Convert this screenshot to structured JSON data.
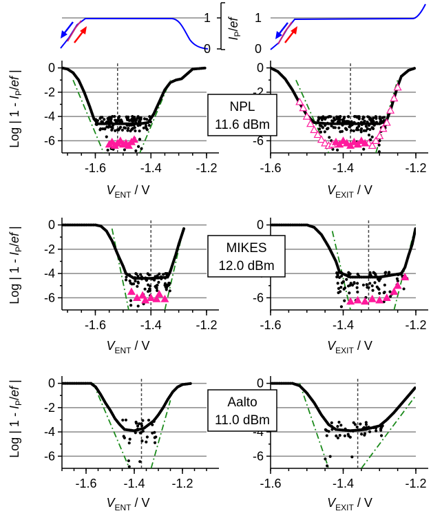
{
  "chart_data": {
    "type": "scatter",
    "y_axis_title": "Log | 1 - I_P/ef |",
    "top_panel": {
      "y_axis_title": "I_P/ef",
      "yticks": [
        "0",
        "1"
      ],
      "ylim": [
        0,
        1
      ]
    },
    "rows": [
      {
        "label": "NPL",
        "power": "11.6 dBm",
        "ylim": [
          -7,
          0
        ],
        "yticks": [
          "0",
          "-2",
          "-4",
          "-6"
        ],
        "left": {
          "xlabel": "V_ENT / V",
          "xlim": [
            -1.72,
            -1.2
          ],
          "xticks": [
            "-1.6",
            "-1.4",
            "-1.2"
          ],
          "xtick_values": [
            -1.6,
            -1.4,
            -1.2
          ],
          "dashed_x": -1.52,
          "curve": [
            [
              -1.72,
              0
            ],
            [
              -1.7,
              -0.1
            ],
            [
              -1.68,
              -0.4
            ],
            [
              -1.66,
              -1
            ],
            [
              -1.64,
              -2
            ],
            [
              -1.62,
              -3.2
            ],
            [
              -1.605,
              -4.2
            ],
            [
              -1.59,
              -4.6
            ],
            [
              -1.56,
              -4.6
            ],
            [
              -1.5,
              -4.6
            ],
            [
              -1.44,
              -4.6
            ],
            [
              -1.41,
              -4.5
            ],
            [
              -1.39,
              -3.8
            ],
            [
              -1.37,
              -2.8
            ],
            [
              -1.35,
              -1.8
            ],
            [
              -1.33,
              -1.2
            ],
            [
              -1.31,
              -1
            ],
            [
              -1.29,
              -0.9
            ],
            [
              -1.27,
              -0.5
            ],
            [
              -1.25,
              -0.1
            ],
            [
              -1.2,
              0
            ]
          ],
          "noise_x": [
            -1.6,
            -1.4
          ],
          "noise_y": [
            -4.0,
            -5.2
          ],
          "noise_count": 120,
          "triangles_filled": [
            [
              -1.55,
              -6.3
            ],
            [
              -1.54,
              -6.1
            ],
            [
              -1.53,
              -6.4
            ],
            [
              -1.52,
              -6.2
            ],
            [
              -1.51,
              -6.0
            ],
            [
              -1.5,
              -6.3
            ],
            [
              -1.49,
              -6.2
            ],
            [
              -1.48,
              -6.4
            ],
            [
              -1.47,
              -6.1
            ],
            [
              -1.46,
              -5.9
            ]
          ],
          "fit_lines": [
            [
              [
                -1.68,
                -1
              ],
              [
                -1.57,
                -7
              ]
            ],
            [
              [
                -1.44,
                -7
              ],
              [
                -1.33,
                -1
              ]
            ]
          ]
        },
        "right": {
          "xlabel": "V_EXIT / V",
          "xlim": [
            -1.6,
            -1.2
          ],
          "xticks": [
            "-1.6",
            "-1.4",
            "-1.2"
          ],
          "xtick_values": [
            -1.6,
            -1.4,
            -1.2
          ],
          "dashed_x": -1.38,
          "curve": [
            [
              -1.6,
              0
            ],
            [
              -1.58,
              -0.3
            ],
            [
              -1.56,
              -0.9
            ],
            [
              -1.54,
              -1.8
            ],
            [
              -1.52,
              -2.9
            ],
            [
              -1.5,
              -3.9
            ],
            [
              -1.48,
              -4.5
            ],
            [
              -1.44,
              -4.6
            ],
            [
              -1.36,
              -4.6
            ],
            [
              -1.3,
              -4.6
            ],
            [
              -1.28,
              -4.3
            ],
            [
              -1.27,
              -3.5
            ],
            [
              -1.26,
              -2.5
            ],
            [
              -1.25,
              -1.5
            ],
            [
              -1.24,
              -0.7
            ],
            [
              -1.22,
              -0.2
            ],
            [
              -1.2,
              0
            ]
          ],
          "noise_x": [
            -1.47,
            -1.28
          ],
          "noise_y": [
            -4.0,
            -5.3
          ],
          "noise_count": 140,
          "triangles_filled": [
            [
              -1.42,
              -6.1
            ],
            [
              -1.41,
              -6.3
            ],
            [
              -1.4,
              -6.0
            ],
            [
              -1.39,
              -6.2
            ],
            [
              -1.38,
              -6.4
            ],
            [
              -1.37,
              -6.1
            ],
            [
              -1.36,
              -6.3
            ],
            [
              -1.35,
              -6.0
            ],
            [
              -1.34,
              -6.2
            ]
          ],
          "triangles_open": [
            [
              -1.5,
              -4.0
            ],
            [
              -1.49,
              -4.6
            ],
            [
              -1.48,
              -5.1
            ],
            [
              -1.47,
              -5.5
            ],
            [
              -1.46,
              -5.9
            ],
            [
              -1.45,
              -6.2
            ],
            [
              -1.44,
              -6.4
            ],
            [
              -1.43,
              -6.3
            ],
            [
              -1.33,
              -6.2
            ],
            [
              -1.32,
              -6.4
            ],
            [
              -1.31,
              -6.0
            ],
            [
              -1.3,
              -5.6
            ],
            [
              -1.29,
              -5.0
            ],
            [
              -1.28,
              -4.5
            ],
            [
              -1.27,
              -3.5
            ],
            [
              -1.26,
              -2.5
            ],
            [
              -1.25,
              -1.6
            ],
            [
              -1.52,
              -2.8
            ],
            [
              -1.51,
              -3.3
            ]
          ],
          "fit_lines": [
            [
              [
                -1.53,
                -1
              ],
              [
                -1.44,
                -7
              ]
            ],
            [
              [
                -1.31,
                -7
              ],
              [
                -1.25,
                -1
              ]
            ]
          ]
        }
      },
      {
        "label": "MIKES",
        "power": "12.0 dBm",
        "ylim": [
          -7,
          1
        ],
        "yticks": [
          "0",
          "-2",
          "-4",
          "-6"
        ],
        "left": {
          "xlabel": "V_ENT / V",
          "xlim": [
            -1.72,
            -1.2
          ],
          "xticks": [
            "-1.6",
            "-1.4",
            "-1.2"
          ],
          "xtick_values": [
            -1.6,
            -1.4,
            -1.2
          ],
          "dashed_x": -1.4,
          "curve": [
            [
              -1.72,
              0
            ],
            [
              -1.6,
              0
            ],
            [
              -1.58,
              -0.1
            ],
            [
              -1.56,
              -0.5
            ],
            [
              -1.54,
              -1.3
            ],
            [
              -1.52,
              -2.4
            ],
            [
              -1.5,
              -3.4
            ],
            [
              -1.49,
              -4.0
            ],
            [
              -1.46,
              -4.4
            ],
            [
              -1.4,
              -4.4
            ],
            [
              -1.34,
              -4.3
            ],
            [
              -1.33,
              -3.8
            ],
            [
              -1.32,
              -3.1
            ],
            [
              -1.31,
              -2.4
            ],
            [
              -1.3,
              -1.6
            ],
            [
              -1.29,
              -0.9
            ],
            [
              -1.28,
              -0.2
            ]
          ],
          "noise_x": [
            -1.49,
            -1.33
          ],
          "noise_y": [
            -4.0,
            -5.5
          ],
          "noise_count": 70,
          "triangles_filled": [
            [
              -1.47,
              -5.5
            ],
            [
              -1.45,
              -6.0
            ],
            [
              -1.43,
              -5.8
            ],
            [
              -1.42,
              -6.2
            ],
            [
              -1.4,
              -6.0
            ],
            [
              -1.38,
              -6.1
            ],
            [
              -1.37,
              -5.7
            ],
            [
              -1.35,
              -6.1
            ]
          ],
          "fit_lines": [
            [
              [
                -1.54,
                -0.3
              ],
              [
                -1.48,
                -7
              ]
            ],
            [
              [
                -1.35,
                -7
              ],
              [
                -1.28,
                0
              ]
            ]
          ]
        },
        "right": {
          "xlabel": "V_EXIT / V",
          "xlim": [
            -1.6,
            -1.2
          ],
          "xticks": [
            "-1.6",
            "-1.4",
            "-1.2"
          ],
          "xtick_values": [
            -1.6,
            -1.4,
            -1.2
          ],
          "dashed_x": -1.33,
          "curve": [
            [
              -1.6,
              0
            ],
            [
              -1.5,
              0
            ],
            [
              -1.48,
              -0.2
            ],
            [
              -1.46,
              -0.8
            ],
            [
              -1.44,
              -1.8
            ],
            [
              -1.42,
              -3.0
            ],
            [
              -1.41,
              -3.9
            ],
            [
              -1.38,
              -4.3
            ],
            [
              -1.3,
              -4.3
            ],
            [
              -1.24,
              -4.0
            ],
            [
              -1.23,
              -3.5
            ],
            [
              -1.22,
              -2.5
            ],
            [
              -1.21,
              -1.6
            ],
            [
              -1.205,
              -0.9
            ],
            [
              -1.2,
              -0.2
            ]
          ],
          "noise_x": [
            -1.42,
            -1.22
          ],
          "noise_y": [
            -3.9,
            -5.8
          ],
          "noise_count": 80,
          "triangles_filled": [
            [
              -1.38,
              -6.3
            ],
            [
              -1.36,
              -6.2
            ],
            [
              -1.34,
              -6.3
            ],
            [
              -1.32,
              -6.1
            ],
            [
              -1.3,
              -6.2
            ],
            [
              -1.28,
              -6.0
            ],
            [
              -1.26,
              -5.5
            ],
            [
              -1.25,
              -5.0
            ],
            [
              -1.23,
              -4.3
            ]
          ],
          "fit_lines": [
            [
              [
                -1.43,
                -0.5
              ],
              [
                -1.38,
                -7
              ]
            ],
            [
              [
                -1.26,
                -7
              ],
              [
                -1.2,
                0
              ]
            ]
          ]
        }
      },
      {
        "label": "Aalto",
        "power": "11.0 dBm",
        "ylim": [
          -7,
          1
        ],
        "yticks": [
          "0",
          "-2",
          "-4",
          "-6"
        ],
        "left": {
          "xlabel": "V_ENT / V",
          "xlim": [
            -1.7,
            -1.1
          ],
          "xticks": [
            "-1.6",
            "-1.4",
            "-1.2"
          ],
          "xtick_values": [
            -1.6,
            -1.4,
            -1.2
          ],
          "dashed_x": -1.37,
          "curve": [
            [
              -1.7,
              0
            ],
            [
              -1.58,
              0
            ],
            [
              -1.56,
              -0.3
            ],
            [
              -1.54,
              -0.9
            ],
            [
              -1.52,
              -1.6
            ],
            [
              -1.5,
              -2.2
            ],
            [
              -1.48,
              -2.9
            ],
            [
              -1.46,
              -3.4
            ],
            [
              -1.44,
              -3.8
            ],
            [
              -1.4,
              -3.9
            ],
            [
              -1.36,
              -3.7
            ],
            [
              -1.32,
              -3.1
            ],
            [
              -1.3,
              -2.6
            ],
            [
              -1.28,
              -2.0
            ],
            [
              -1.26,
              -1.3
            ],
            [
              -1.24,
              -0.7
            ],
            [
              -1.22,
              -0.3
            ],
            [
              -1.2,
              -0.1
            ],
            [
              -1.16,
              0
            ]
          ],
          "noise_x": [
            -1.45,
            -1.31
          ],
          "noise_y": [
            -3.0,
            -5.0
          ],
          "noise_count": 30,
          "triangles_filled": [],
          "fit_lines": [
            [
              [
                -1.57,
                0
              ],
              [
                -1.42,
                -7
              ]
            ],
            [
              [
                -1.33,
                -7
              ],
              [
                -1.25,
                -1.4
              ]
            ]
          ]
        },
        "right": {
          "xlabel": "V_EXIT / V",
          "xlim": [
            -1.6,
            -1.2
          ],
          "xticks": [
            "-1.6",
            "-1.4",
            "-1.2"
          ],
          "xtick_values": [
            -1.6,
            -1.4,
            -1.2
          ],
          "dashed_x": -1.36,
          "curve": [
            [
              -1.6,
              0
            ],
            [
              -1.54,
              0
            ],
            [
              -1.52,
              -0.2
            ],
            [
              -1.5,
              -0.8
            ],
            [
              -1.48,
              -1.6
            ],
            [
              -1.46,
              -2.6
            ],
            [
              -1.44,
              -3.4
            ],
            [
              -1.42,
              -3.8
            ],
            [
              -1.38,
              -3.9
            ],
            [
              -1.34,
              -3.8
            ],
            [
              -1.3,
              -3.5
            ],
            [
              -1.28,
              -3.0
            ],
            [
              -1.26,
              -2.4
            ],
            [
              -1.24,
              -1.7
            ],
            [
              -1.22,
              -1.0
            ],
            [
              -1.2,
              -0.3
            ]
          ],
          "noise_x": [
            -1.45,
            -1.28
          ],
          "noise_y": [
            -3.2,
            -4.6
          ],
          "noise_count": 45,
          "triangles_filled": [],
          "fit_lines": [
            [
              [
                -1.52,
                0
              ],
              [
                -1.44,
                -7
              ]
            ],
            [
              [
                -1.35,
                -7
              ],
              [
                -1.2,
                -1.0
              ]
            ]
          ]
        }
      }
    ]
  },
  "labels": {
    "log_prefix": "Log | 1 - ",
    "I": "I",
    "P_sub": "P",
    "slash": "/",
    "ef": "ef",
    "log_suffix": " |",
    "V": "V",
    "ENT": "ENT",
    "EXIT": "EXIT",
    "volt_suffix": " / V",
    "top_one_a": "1",
    "top_one_b": "1",
    "top_zero_a": "0",
    "top_zero_b": "0"
  },
  "colors": {
    "curve_blue": "#0000ff",
    "arrow_red": "#ff0000",
    "triangle": "#ff1a9c",
    "fit_green": "#1a8a1a",
    "grid": "#888888"
  }
}
